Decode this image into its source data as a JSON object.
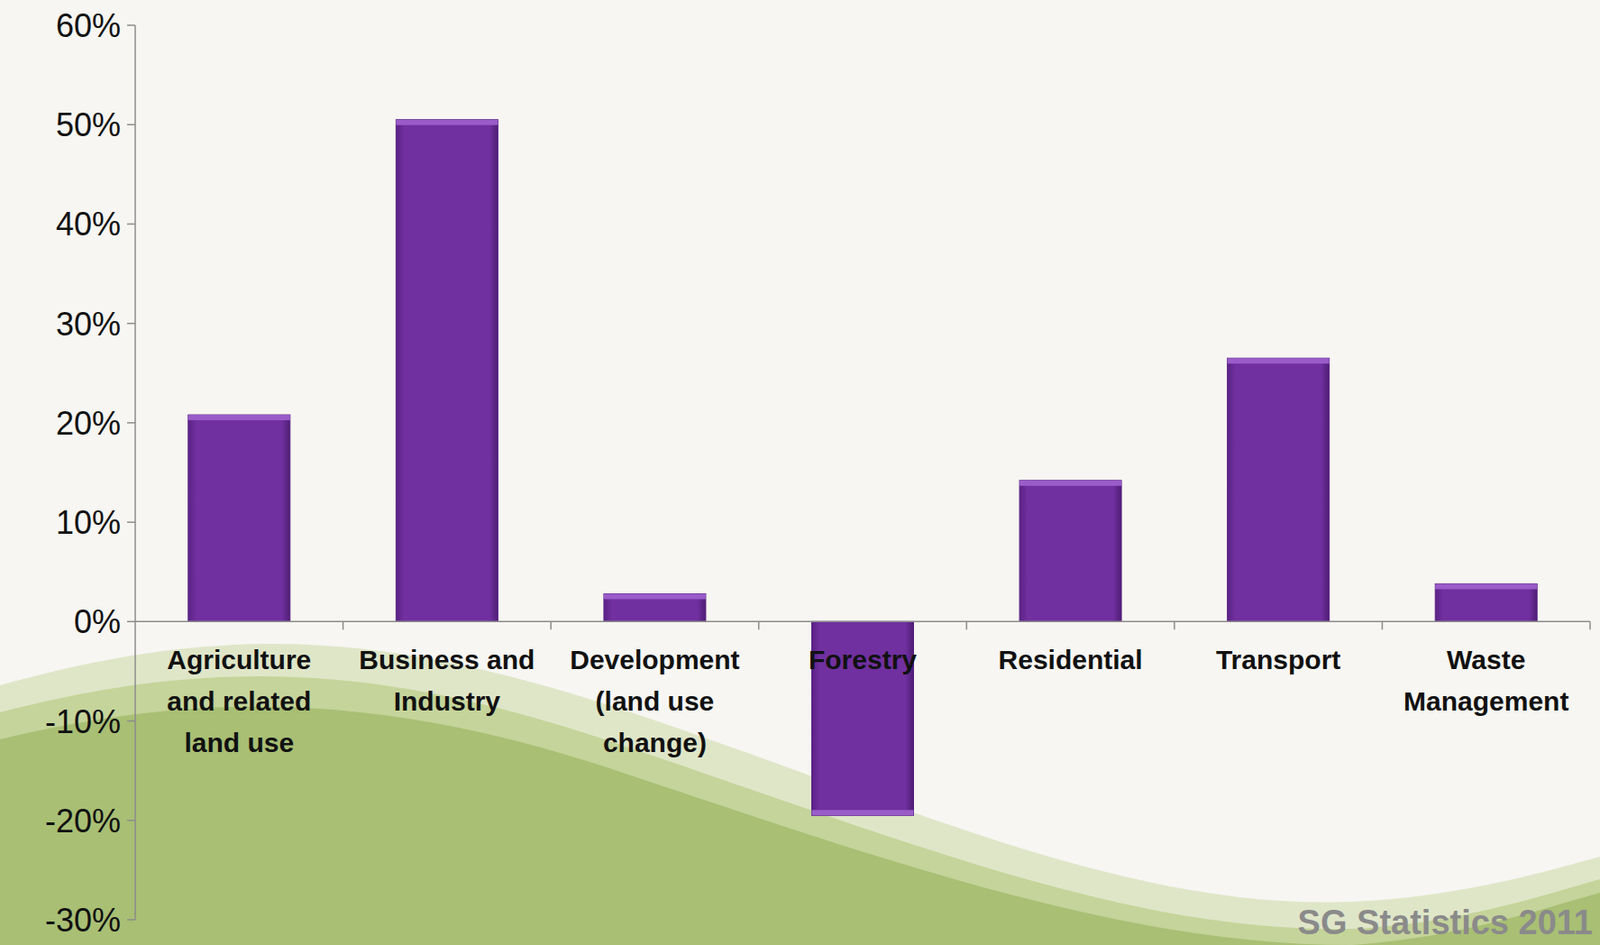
{
  "chart_data": {
    "type": "bar",
    "categories": [
      "Agriculture and related land use",
      "Business and Industry",
      "Development (land use change)",
      "Forestry",
      "Residential",
      "Transport",
      "Waste Management"
    ],
    "values": [
      20.8,
      50.5,
      2.8,
      -19.5,
      14.2,
      26.5,
      3.8
    ],
    "color": "#7030a0",
    "ylim": [
      -30,
      60
    ],
    "yticks": [
      {
        "value": -30,
        "label": "-30%"
      },
      {
        "value": -20,
        "label": "-20%"
      },
      {
        "value": -10,
        "label": "-10%"
      },
      {
        "value": 0,
        "label": "0%"
      },
      {
        "value": 10,
        "label": "10%"
      },
      {
        "value": 20,
        "label": "20%"
      },
      {
        "value": 30,
        "label": "30%"
      },
      {
        "value": 40,
        "label": "40%"
      },
      {
        "value": 50,
        "label": "50%"
      },
      {
        "value": 60,
        "label": "60%"
      }
    ],
    "grid": false,
    "annotations": [
      "SG Statistics 2011"
    ]
  }
}
